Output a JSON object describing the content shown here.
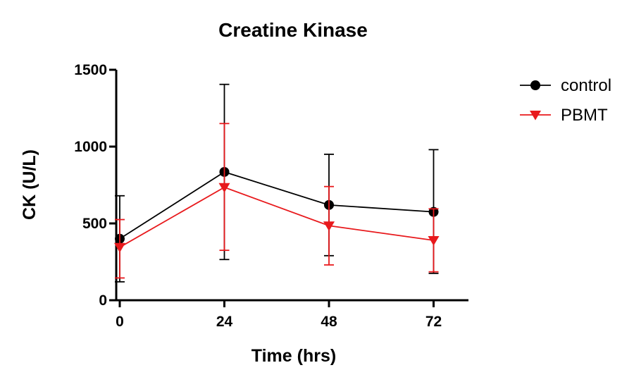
{
  "chart_data": {
    "type": "line",
    "title": "Creatine Kinase",
    "xlabel": "Time (hrs)",
    "ylabel": "CK (U/L)",
    "x": [
      0,
      24,
      48,
      72
    ],
    "x_tick_labels": [
      "0",
      "24",
      "48",
      "72"
    ],
    "xlim": [
      0,
      80
    ],
    "ylim": [
      0,
      1500
    ],
    "y_ticks": [
      0,
      500,
      1000,
      1500
    ],
    "y_tick_labels": [
      "0",
      "500",
      "1000",
      "1500"
    ],
    "grid": false,
    "legend_position": "top-right",
    "series": [
      {
        "name": "control",
        "color": "#000000",
        "marker": "circle",
        "values": [
          400,
          835,
          620,
          575
        ],
        "error_upper": [
          680,
          1405,
          950,
          980
        ],
        "error_lower": [
          120,
          265,
          290,
          175
        ]
      },
      {
        "name": "PBMT",
        "color": "#e8191c",
        "marker": "triangle-down",
        "values": [
          345,
          735,
          485,
          390
        ],
        "error_upper": [
          525,
          1150,
          740,
          595
        ],
        "error_lower": [
          145,
          325,
          230,
          185
        ]
      }
    ]
  }
}
